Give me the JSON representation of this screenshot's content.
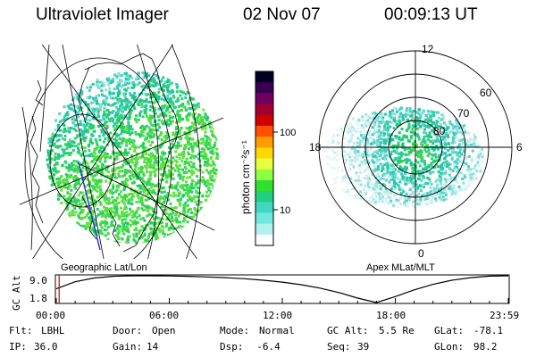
{
  "header": {
    "instrument": "Ultraviolet Imager",
    "date": "02 Nov 07",
    "time": "00:09:13 UT"
  },
  "left_panel": {
    "label": "Geographic Lat/Lon"
  },
  "right_panel": {
    "label": "Apex MLat/MLT",
    "mlt_labels": [
      "12",
      "18",
      "6",
      "0"
    ],
    "mlat_labels": [
      "60",
      "70",
      "80"
    ]
  },
  "colorbar": {
    "unit_label": "photon cm⁻²s⁻¹",
    "scale": "log",
    "tick_labels": [
      "100",
      "10"
    ],
    "colors": [
      "#000020",
      "#3a0050",
      "#700060",
      "#a00030",
      "#d00000",
      "#ff5000",
      "#ff9a00",
      "#ffd800",
      "#e8ff40",
      "#90ff40",
      "#30e030",
      "#20d080",
      "#40d8c0",
      "#70e8e0",
      "#b0f0ee",
      "#ffffff"
    ]
  },
  "altitude_panel": {
    "ylabel": "GC Alt",
    "y_ticks": [
      "9.0",
      "1.8"
    ],
    "x_ticks": [
      "00:00",
      "06:00",
      "12:00",
      "18:00",
      "23:59"
    ]
  },
  "chart_data": {
    "type": "line",
    "title": "",
    "xlabel": "",
    "ylabel": "GC Alt",
    "x_units": "UT hours",
    "ylim": [
      1.8,
      9.0
    ],
    "xlim": [
      0,
      24
    ],
    "x": [
      0,
      1,
      2,
      3,
      4,
      5,
      6,
      7,
      8,
      9,
      10,
      11,
      12,
      13,
      14,
      15,
      16,
      17,
      18,
      19,
      20,
      21,
      22,
      23,
      24
    ],
    "series": [
      {
        "values": [
          5.5,
          7.4,
          8.4,
          8.85,
          9.0,
          9.0,
          8.95,
          8.85,
          8.7,
          8.5,
          8.2,
          7.8,
          7.3,
          6.6,
          5.7,
          4.5,
          3.0,
          1.8,
          3.4,
          5.2,
          6.7,
          7.8,
          8.5,
          8.9,
          9.0
        ]
      }
    ],
    "cursor_time": "00:09:13"
  },
  "info": {
    "row1": [
      {
        "label": "Flt:",
        "value": "LBHL"
      },
      {
        "label": "Door:",
        "value": "Open"
      },
      {
        "label": "Mode:",
        "value": "Normal"
      },
      {
        "label": "GC Alt:",
        "value": "5.5 Re"
      },
      {
        "label": "GLat:",
        "value": "-78.1"
      }
    ],
    "row2": [
      {
        "label": "IP:",
        "value": "36.0"
      },
      {
        "label": "Gain:",
        "value": "14"
      },
      {
        "label": "Dsp:",
        "value": "  -6.4"
      },
      {
        "label": "Seq:",
        "value": "39"
      },
      {
        "label": "GLon:",
        "value": "98.2"
      }
    ]
  }
}
